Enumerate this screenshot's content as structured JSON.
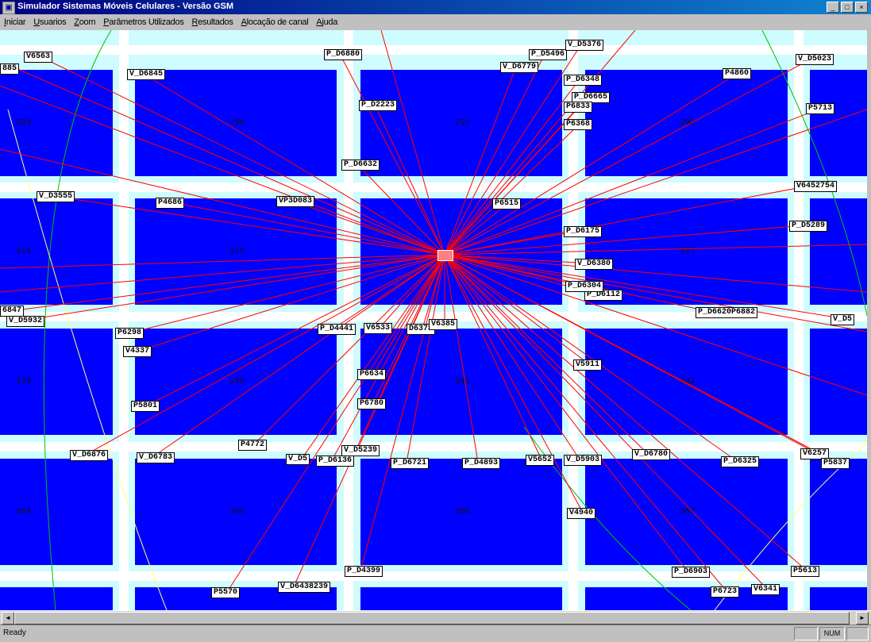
{
  "window": {
    "title": "Simulador Sistemas Móveis Celulares - Versão GSM"
  },
  "menu": [
    "Iniciar",
    "Usuarios",
    "Zoom",
    "Parâmetros Utilizados",
    "Resultados",
    "Alocação de canal",
    "Ajuda"
  ],
  "colors": {
    "block": "#0000ff",
    "street": "#ffffff",
    "link": "#ff0000",
    "coverage_green": "#00c000",
    "coverage_yellow": "#ffff80"
  },
  "cells": [
    "289",
    "290",
    "291",
    "292",
    "314",
    "315",
    "317",
    "339",
    "340",
    "341",
    "342",
    "364",
    "365",
    "366",
    "367"
  ],
  "users": [
    "V6563",
    "885",
    "V_D6845",
    "P_D6880",
    "P_D5496",
    "V_D5376",
    "V_D6779",
    "P_D6348",
    "P4860",
    "V_D5023",
    "P_D2223",
    "P_D6665",
    "P6833",
    "P6368",
    "P5713",
    "P_D6632",
    "V_D3555",
    "P4686",
    "VP3D083",
    "P6515",
    "V6452754",
    "P_D6175",
    "P_D5289",
    "V_D6380",
    "P_D6112",
    "P_D6304",
    "P_D6620P6882",
    "V_D5",
    "6847",
    "V_D5932",
    "P6298",
    "P_D4441",
    "V6533",
    "D6378",
    "V6385",
    "V5911",
    "V4337",
    "P6634",
    "P5801",
    "P6780",
    "P4772",
    "V_D5239",
    "V_D6876",
    "V_D6783",
    "V_D5",
    "P_D6136",
    "P_D6721",
    "P_D4893",
    "V5652",
    "V_D5903",
    "V_D6780",
    "P_D6325",
    "V6257",
    "P5837",
    "V4940",
    "P_D4399",
    "P_D6903",
    "P5613",
    "P5570",
    "V_D6438239",
    "P6723",
    "V6341"
  ],
  "status": {
    "text": "Ready",
    "num": "NUM"
  }
}
